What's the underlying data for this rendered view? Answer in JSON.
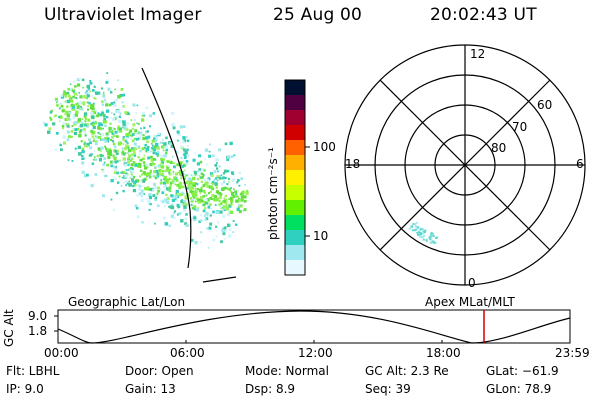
{
  "header": {
    "instrument": "Ultraviolet Imager",
    "date": "25 Aug 00",
    "time": "20:02:43 UT"
  },
  "colorbar": {
    "unit_label": "photon cm⁻²s⁻¹",
    "ticks": [
      "100",
      "10"
    ],
    "colors": [
      "#001030",
      "#500040",
      "#a00030",
      "#d00000",
      "#ff6000",
      "#ffb000",
      "#fff000",
      "#c8ff00",
      "#60f000",
      "#00e060",
      "#30d0c0",
      "#a0e8f0",
      "#e8f8ff"
    ]
  },
  "polar": {
    "mlt_labels": {
      "top": "12",
      "left": "18",
      "right": "6",
      "bottom": "0"
    },
    "lat_labels": [
      "60",
      "70",
      "80"
    ]
  },
  "labels": {
    "left_panel": "Geographic Lat/Lon",
    "right_panel": "Apex MLat/MLT"
  },
  "altitude_plot": {
    "y_title": "GC Alt",
    "y_ticks": [
      "9.0",
      "1.8"
    ],
    "x_ticks": [
      "00:00",
      "06:00",
      "12:00",
      "18:00",
      "23:59"
    ],
    "marker_color": "#d00000"
  },
  "info": {
    "filter": "Flt:  LBHL",
    "ip": "IP:  9.0",
    "door": "Door:  Open",
    "gain": "Gain: 13",
    "mode": "Mode:  Normal",
    "dsp": "Dsp:      8.9",
    "gc_alt": "GC Alt:  2.3 Re",
    "seq": "Seq:  39",
    "glat": "GLat:  −61.9",
    "glon": "GLon:  78.9"
  }
}
